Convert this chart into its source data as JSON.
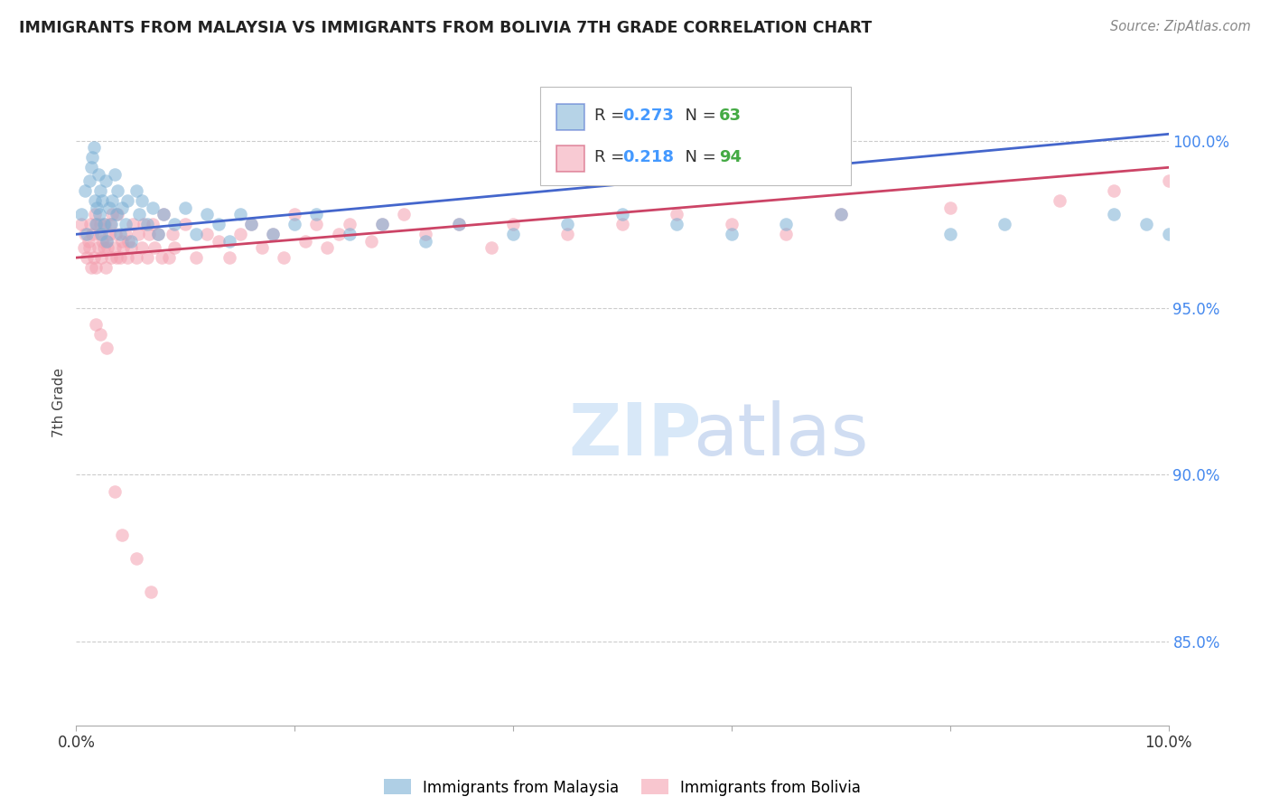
{
  "title": "IMMIGRANTS FROM MALAYSIA VS IMMIGRANTS FROM BOLIVIA 7TH GRADE CORRELATION CHART",
  "source": "Source: ZipAtlas.com",
  "ylabel": "7th Grade",
  "malaysia_color": "#7BAFD4",
  "bolivia_color": "#F4A0B0",
  "malaysia_R": 0.273,
  "malaysia_N": 63,
  "bolivia_R": 0.218,
  "bolivia_N": 94,
  "malaysia_line_color": "#4466CC",
  "bolivia_line_color": "#CC4466",
  "legend_R_color": "#4499FF",
  "legend_N_color": "#44AA44",
  "xlim": [
    0.0,
    10.0
  ],
  "ylim": [
    82.5,
    101.8
  ],
  "ytick_vals": [
    85.0,
    90.0,
    95.0,
    100.0
  ],
  "ytick_labels": [
    "85.0%",
    "90.0%",
    "95.0%",
    "100.0%"
  ],
  "malaysia_x": [
    0.05,
    0.08,
    0.1,
    0.12,
    0.14,
    0.15,
    0.16,
    0.17,
    0.18,
    0.19,
    0.2,
    0.21,
    0.22,
    0.23,
    0.24,
    0.25,
    0.27,
    0.28,
    0.3,
    0.32,
    0.33,
    0.35,
    0.37,
    0.38,
    0.4,
    0.42,
    0.45,
    0.47,
    0.5,
    0.55,
    0.58,
    0.6,
    0.65,
    0.7,
    0.75,
    0.8,
    0.9,
    1.0,
    1.1,
    1.2,
    1.3,
    1.4,
    1.5,
    1.6,
    1.8,
    2.0,
    2.2,
    2.5,
    2.8,
    3.2,
    3.5,
    4.0,
    4.5,
    5.0,
    5.5,
    6.0,
    6.5,
    7.0,
    8.0,
    8.5,
    9.5,
    9.8,
    10.0
  ],
  "malaysia_y": [
    97.8,
    98.5,
    97.2,
    98.8,
    99.2,
    99.5,
    99.8,
    98.2,
    97.5,
    98.0,
    99.0,
    97.8,
    98.5,
    97.2,
    98.2,
    97.5,
    98.8,
    97.0,
    98.0,
    97.5,
    98.2,
    99.0,
    97.8,
    98.5,
    97.2,
    98.0,
    97.5,
    98.2,
    97.0,
    98.5,
    97.8,
    98.2,
    97.5,
    98.0,
    97.2,
    97.8,
    97.5,
    98.0,
    97.2,
    97.8,
    97.5,
    97.0,
    97.8,
    97.5,
    97.2,
    97.5,
    97.8,
    97.2,
    97.5,
    97.0,
    97.5,
    97.2,
    97.5,
    97.8,
    97.5,
    97.2,
    97.5,
    97.8,
    97.2,
    97.5,
    97.8,
    97.5,
    97.2
  ],
  "bolivia_x": [
    0.05,
    0.07,
    0.08,
    0.1,
    0.11,
    0.12,
    0.13,
    0.14,
    0.15,
    0.16,
    0.17,
    0.18,
    0.19,
    0.2,
    0.21,
    0.22,
    0.23,
    0.24,
    0.25,
    0.26,
    0.27,
    0.28,
    0.29,
    0.3,
    0.31,
    0.32,
    0.33,
    0.35,
    0.36,
    0.37,
    0.38,
    0.4,
    0.42,
    0.43,
    0.45,
    0.47,
    0.48,
    0.5,
    0.52,
    0.55,
    0.57,
    0.6,
    0.62,
    0.65,
    0.67,
    0.7,
    0.72,
    0.75,
    0.78,
    0.8,
    0.85,
    0.88,
    0.9,
    1.0,
    1.1,
    1.2,
    1.3,
    1.4,
    1.5,
    1.6,
    1.7,
    1.8,
    1.9,
    2.0,
    2.1,
    2.2,
    2.3,
    2.4,
    2.5,
    2.7,
    2.8,
    3.0,
    3.2,
    3.5,
    3.8,
    4.0,
    4.5,
    5.0,
    5.5,
    6.0,
    6.5,
    7.0,
    8.0,
    9.0,
    9.5,
    10.0,
    0.18,
    0.22,
    0.28,
    0.35,
    0.42,
    0.55,
    0.68
  ],
  "bolivia_y": [
    97.5,
    96.8,
    97.2,
    96.5,
    97.0,
    96.8,
    97.5,
    96.2,
    97.2,
    96.5,
    97.8,
    96.2,
    97.5,
    96.8,
    97.2,
    97.5,
    96.5,
    97.0,
    96.8,
    97.5,
    96.2,
    97.0,
    96.8,
    97.2,
    97.5,
    96.5,
    97.8,
    96.8,
    97.2,
    96.5,
    97.8,
    96.5,
    97.0,
    96.8,
    97.2,
    96.5,
    97.0,
    96.8,
    97.5,
    96.5,
    97.2,
    96.8,
    97.5,
    96.5,
    97.2,
    97.5,
    96.8,
    97.2,
    96.5,
    97.8,
    96.5,
    97.2,
    96.8,
    97.5,
    96.5,
    97.2,
    97.0,
    96.5,
    97.2,
    97.5,
    96.8,
    97.2,
    96.5,
    97.8,
    97.0,
    97.5,
    96.8,
    97.2,
    97.5,
    97.0,
    97.5,
    97.8,
    97.2,
    97.5,
    96.8,
    97.5,
    97.2,
    97.5,
    97.8,
    97.5,
    97.2,
    97.8,
    98.0,
    98.2,
    98.5,
    98.8,
    94.5,
    94.2,
    93.8,
    89.5,
    88.2,
    87.5,
    86.5
  ],
  "mal_line_x0": 0.0,
  "mal_line_x1": 10.0,
  "mal_line_y0": 97.2,
  "mal_line_y1": 100.2,
  "bol_line_x0": 0.0,
  "bol_line_x1": 10.0,
  "bol_line_y0": 96.5,
  "bol_line_y1": 99.2
}
